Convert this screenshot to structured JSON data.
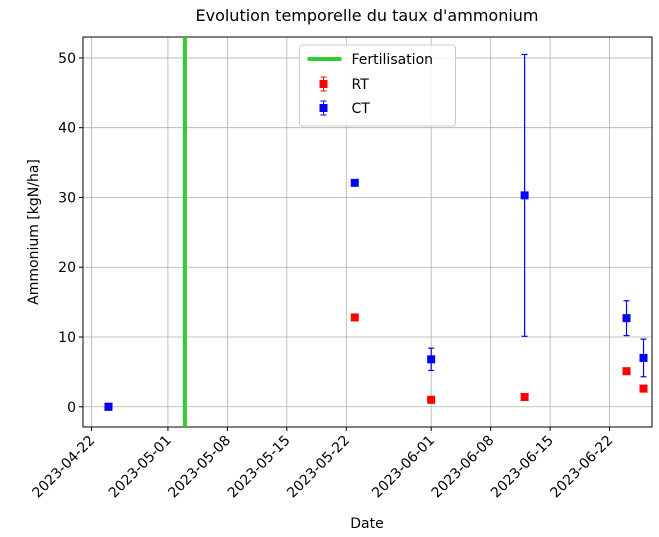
{
  "chart_data": {
    "type": "errorbar",
    "title": "Evolution temporelle du taux d'ammonium",
    "xlabel": "Date",
    "ylabel": "Ammonium [kgN/ha]",
    "x": [
      "2023-04-24",
      "2023-05-23",
      "2023-06-01",
      "2023-06-12",
      "2023-06-24",
      "2023-06-26"
    ],
    "series": [
      {
        "name": "RT",
        "color": "#ff0000",
        "values": [
          0,
          12.8,
          1.0,
          1.4,
          5.1,
          2.6
        ]
      },
      {
        "name": "CT",
        "color": "#0000ff",
        "values": [
          0,
          32.1,
          6.8,
          30.3,
          12.7,
          7.0
        ],
        "errors": [
          0,
          0,
          1.6,
          20.2,
          2.5,
          2.7
        ]
      }
    ],
    "vline": {
      "name": "Fertilisation",
      "x": "2023-05-03",
      "color": "#33cc33"
    },
    "xlim": [
      "2023-04-21",
      "2023-06-27"
    ],
    "xticks": [
      "2023-04-22",
      "2023-05-01",
      "2023-05-08",
      "2023-05-15",
      "2023-05-22",
      "2023-06-01",
      "2023-06-08",
      "2023-06-15",
      "2023-06-22"
    ],
    "ylim": [
      -2.9,
      53
    ],
    "yticks": [
      0,
      10,
      20,
      30,
      40,
      50
    ],
    "grid": true,
    "legend": "upper center"
  }
}
